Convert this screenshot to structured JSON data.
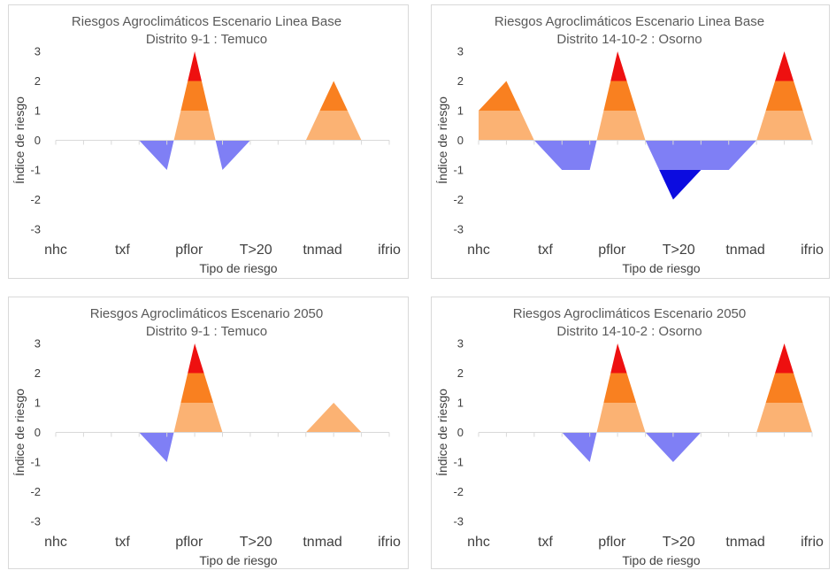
{
  "colors": {
    "level_1": "#fbb273",
    "level_2": "#f98020",
    "level_3": "#ee1010",
    "negative_1": "#7f7ff5",
    "negative_2": "#0c0ce0",
    "zero_line": "#d9d9d9",
    "text": "#404040"
  },
  "chart_data": [
    {
      "type": "area",
      "title": "Riesgos Agroclimáticos Escenario Linea Base",
      "subtitle": "Distrito 9-1 :  Temuco",
      "xlabel": "Tipo de riesgo",
      "ylabel": "Índice de riesgo",
      "ylim": [
        -3,
        3
      ],
      "yticks": [
        "3",
        "2",
        "1",
        "0",
        "-1",
        "-2",
        "-3"
      ],
      "categories": [
        "nhc",
        "txf",
        "pflor",
        "T>20",
        "tnmad",
        "ifrio"
      ],
      "x": [
        0,
        0.5,
        1,
        1.5,
        2,
        2.5,
        3,
        3.5,
        4,
        4.5,
        5,
        5.5,
        6
      ],
      "values": [
        0,
        0,
        0,
        0,
        -1,
        3,
        -1,
        0,
        0,
        0,
        2,
        0,
        0
      ]
    },
    {
      "type": "area",
      "title": "Riesgos Agroclimáticos Escenario Linea Base",
      "subtitle": "Distrito 14-10-2 :  Osorno",
      "xlabel": "Tipo de riesgo",
      "ylabel": "Índice de riesgo",
      "ylim": [
        -3,
        3
      ],
      "yticks": [
        "3",
        "2",
        "1",
        "0",
        "-1",
        "-2",
        "-3"
      ],
      "categories": [
        "nhc",
        "txf",
        "pflor",
        "T>20",
        "tnmad",
        "ifrio"
      ],
      "x": [
        0,
        0.5,
        1,
        1.5,
        2,
        2.5,
        3,
        3.5,
        4,
        4.5,
        5,
        5.5,
        6
      ],
      "values": [
        1,
        2,
        0,
        -1,
        -1,
        3,
        0,
        -2,
        -1,
        -1,
        0,
        3,
        0
      ]
    },
    {
      "type": "area",
      "title": "Riesgos Agroclimáticos Escenario 2050",
      "subtitle": "Distrito 9-1 :  Temuco",
      "xlabel": "Tipo de riesgo",
      "ylabel": "Índice de riesgo",
      "ylim": [
        -3,
        3
      ],
      "yticks": [
        "3",
        "2",
        "1",
        "0",
        "-1",
        "-2",
        "-3"
      ],
      "categories": [
        "nhc",
        "txf",
        "pflor",
        "T>20",
        "tnmad",
        "ifrio"
      ],
      "x": [
        0,
        0.5,
        1,
        1.5,
        2,
        2.5,
        3,
        3.5,
        4,
        4.5,
        5,
        5.5,
        6
      ],
      "values": [
        0,
        0,
        0,
        0,
        -1,
        3,
        0,
        0,
        0,
        0,
        1,
        0,
        0
      ]
    },
    {
      "type": "area",
      "title": "Riesgos Agroclimáticos Escenario 2050",
      "subtitle": "Distrito 14-10-2 :  Osorno",
      "xlabel": "Tipo de riesgo",
      "ylabel": "Índice de riesgo",
      "ylim": [
        -3,
        3
      ],
      "yticks": [
        "3",
        "2",
        "1",
        "0",
        "-1",
        "-2",
        "-3"
      ],
      "categories": [
        "nhc",
        "txf",
        "pflor",
        "T>20",
        "tnmad",
        "ifrio"
      ],
      "x": [
        0,
        0.5,
        1,
        1.5,
        2,
        2.5,
        3,
        3.5,
        4,
        4.5,
        5,
        5.5,
        6
      ],
      "values": [
        0,
        0,
        0,
        0,
        -1,
        3,
        0,
        -1,
        0,
        0,
        0,
        3,
        0
      ]
    }
  ]
}
